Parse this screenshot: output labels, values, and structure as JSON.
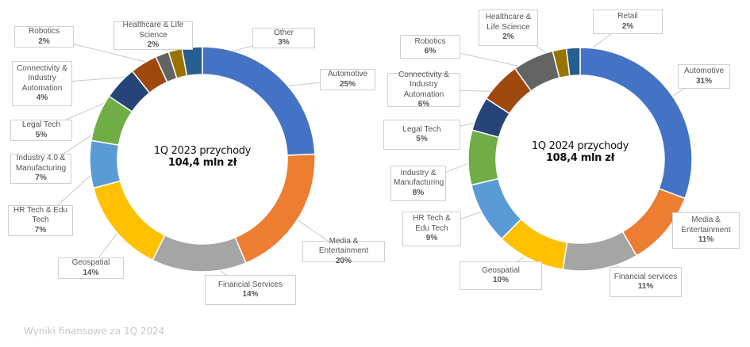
{
  "chart_data": [
    {
      "type": "pie",
      "variant": "donut",
      "title": "1Q 2023 przychody",
      "total": "104,4 mln zł",
      "categories": [
        "Automotive",
        "Media & Entertainment",
        "Financial Services",
        "Geospatial",
        "HR Tech & Edu Tech",
        "Industry 4.0 & Manufacturing",
        "Legal Tech",
        "Connectivity & Industry Automation",
        "Robotics",
        "Healthcare & Life Science",
        "Other"
      ],
      "values": [
        25,
        20,
        14,
        14,
        7,
        7,
        5,
        4,
        2,
        2,
        3
      ],
      "value_labels": [
        "25%",
        "20%",
        "14%",
        "14%",
        "7%",
        "7%",
        "5%",
        "4%",
        "2%",
        "2%",
        "3%"
      ],
      "colors": [
        "#4472C4",
        "#ED7D31",
        "#A5A5A5",
        "#FFC000",
        "#5B9BD5",
        "#70AD47",
        "#264478",
        "#9E480E",
        "#636363",
        "#997300",
        "#255E91"
      ]
    },
    {
      "type": "pie",
      "variant": "donut",
      "title": "1Q 2024 przychody",
      "total": "108,4 mln zł",
      "categories": [
        "Automotive",
        "Media & Entertainment",
        "Financial services",
        "Geospatial",
        "HR Tech & Edu Tech",
        "Industry & Manufacturing",
        "Legal Tech",
        "Connectivity & Industry Automation",
        "Robotics",
        "Healthcare & Life Science",
        "Retail"
      ],
      "values": [
        31,
        11,
        11,
        10,
        9,
        8,
        5,
        6,
        6,
        2,
        2
      ],
      "value_labels": [
        "31%",
        "11%",
        "11%",
        "10%",
        "9%",
        "8%",
        "5%",
        "6%",
        "6%",
        "2%",
        "2%"
      ],
      "colors": [
        "#4472C4",
        "#ED7D31",
        "#A5A5A5",
        "#FFC000",
        "#5B9BD5",
        "#70AD47",
        "#264478",
        "#9E480E",
        "#636363",
        "#997300",
        "#255E91"
      ]
    }
  ],
  "footer": "Wyniki finansowe za 1Q 2024"
}
